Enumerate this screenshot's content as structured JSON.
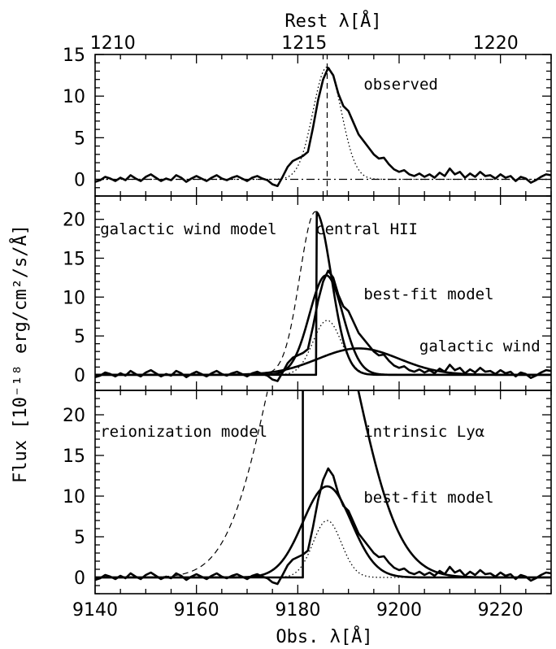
{
  "chart_data": {
    "type": "line",
    "x_axis": {
      "label": "Obs. λ[Å]",
      "range": [
        9140,
        9230
      ],
      "ticks": [
        9140,
        9160,
        9180,
        9200,
        9220
      ]
    },
    "top_axis": {
      "label": "Rest λ[Å]",
      "ticks": [
        1210,
        1215,
        1220
      ],
      "obs_per_rest": 7.5566,
      "obs_offset": 0
    },
    "y_axis_label": "Flux [10⁻¹⁸ erg/cm²/s/Å]",
    "panels": [
      {
        "id": "observed",
        "ylim": [
          -2,
          15
        ],
        "yticks": [
          0,
          5,
          10,
          15
        ],
        "annotations": [
          {
            "text": "observed",
            "x": 9193,
            "y": 10.8
          }
        ],
        "vline": {
          "x": 9185.8,
          "style": "dashed"
        },
        "hline": {
          "y": 0,
          "style": "dashdot"
        },
        "series": [
          {
            "role": "data",
            "style": "thick",
            "points": [
              [
                9140,
                -0.3
              ],
              [
                9141,
                -0.1
              ],
              [
                9142,
                0.3
              ],
              [
                9143,
                0.1
              ],
              [
                9144,
                -0.2
              ],
              [
                9145,
                0.2
              ],
              [
                9146,
                -0.1
              ],
              [
                9147,
                0.5
              ],
              [
                9148,
                0.1
              ],
              [
                9149,
                -0.2
              ],
              [
                9150,
                0.3
              ],
              [
                9151,
                0.6
              ],
              [
                9152,
                0.2
              ],
              [
                9153,
                -0.2
              ],
              [
                9154,
                0.1
              ],
              [
                9155,
                -0.1
              ],
              [
                9156,
                0.5
              ],
              [
                9157,
                0.2
              ],
              [
                9158,
                -0.3
              ],
              [
                9159,
                0.1
              ],
              [
                9160,
                0.4
              ],
              [
                9161,
                0.1
              ],
              [
                9162,
                -0.2
              ],
              [
                9163,
                0.2
              ],
              [
                9164,
                0.5
              ],
              [
                9165,
                0.1
              ],
              [
                9166,
                -0.1
              ],
              [
                9167,
                0.2
              ],
              [
                9168,
                0.4
              ],
              [
                9169,
                0.1
              ],
              [
                9170,
                -0.2
              ],
              [
                9171,
                0.2
              ],
              [
                9172,
                0.4
              ],
              [
                9173,
                0.1
              ],
              [
                9174,
                -0.1
              ],
              [
                9175,
                -0.6
              ],
              [
                9176,
                -0.8
              ],
              [
                9177,
                0.3
              ],
              [
                9178,
                1.5
              ],
              [
                9179,
                2.2
              ],
              [
                9180,
                2.5
              ],
              [
                9181,
                2.8
              ],
              [
                9182,
                3.3
              ],
              [
                9183,
                6.2
              ],
              [
                9184,
                9.5
              ],
              [
                9185,
                12.0
              ],
              [
                9186,
                13.4
              ],
              [
                9187,
                12.5
              ],
              [
                9188,
                10.3
              ],
              [
                9189,
                8.8
              ],
              [
                9190,
                8.2
              ],
              [
                9191,
                6.8
              ],
              [
                9192,
                5.4
              ],
              [
                9193,
                4.6
              ],
              [
                9194,
                3.8
              ],
              [
                9195,
                3.0
              ],
              [
                9196,
                2.5
              ],
              [
                9197,
                2.6
              ],
              [
                9198,
                1.8
              ],
              [
                9199,
                1.2
              ],
              [
                9200,
                0.9
              ],
              [
                9201,
                1.1
              ],
              [
                9202,
                0.6
              ],
              [
                9203,
                0.4
              ],
              [
                9204,
                0.7
              ],
              [
                9205,
                0.3
              ],
              [
                9206,
                0.6
              ],
              [
                9207,
                0.2
              ],
              [
                9208,
                0.8
              ],
              [
                9209,
                0.4
              ],
              [
                9210,
                1.3
              ],
              [
                9211,
                0.6
              ],
              [
                9212,
                0.9
              ],
              [
                9213,
                0.2
              ],
              [
                9214,
                0.7
              ],
              [
                9215,
                0.3
              ],
              [
                9216,
                0.9
              ],
              [
                9217,
                0.4
              ],
              [
                9218,
                0.5
              ],
              [
                9219,
                0.1
              ],
              [
                9220,
                0.6
              ],
              [
                9221,
                0.2
              ],
              [
                9222,
                0.4
              ],
              [
                9223,
                -0.2
              ],
              [
                9224,
                0.3
              ],
              [
                9225,
                0.1
              ],
              [
                9226,
                -0.4
              ],
              [
                9227,
                -0.1
              ],
              [
                9228,
                0.3
              ],
              [
                9229,
                0.6
              ],
              [
                9230,
                0.5
              ]
            ]
          },
          {
            "role": "gaussian",
            "style": "dotted",
            "gauss": {
              "amp": 13.5,
              "mu": 9185.8,
              "sigma": 2.8
            }
          }
        ]
      },
      {
        "id": "wind",
        "ylim": [
          -2,
          23
        ],
        "yticks": [
          0,
          5,
          10,
          15,
          20
        ],
        "annotations": [
          {
            "text": "galactic wind model",
            "x": 9141,
            "y": 18.1
          },
          {
            "text": "central HII",
            "x": 9183.5,
            "y": 18.1
          },
          {
            "text": "best-fit model",
            "x": 9193,
            "y": 9.7
          },
          {
            "text": "galactic wind",
            "x": 9204,
            "y": 3.0
          }
        ],
        "series": [
          {
            "role": "data",
            "style": "thick",
            "ref": "observed"
          },
          {
            "role": "central-HII-intrinsic",
            "style": "dashed",
            "gauss": {
              "amp": 21.0,
              "mu": 9183.5,
              "sigma": 3.1
            }
          },
          {
            "role": "central-HII",
            "style": "thick",
            "gauss": {
              "amp": 21.0,
              "mu": 9183.5,
              "sigma": 3.1,
              "cut_below": 9183.6
            }
          },
          {
            "role": "galactic-wind",
            "style": "thick",
            "gauss": {
              "amp": 3.4,
              "mu": 9192.0,
              "sigma": 8.0
            }
          },
          {
            "role": "best-fit",
            "style": "thick",
            "gauss": {
              "amp": 12.8,
              "mu": 9185.6,
              "sigma": 3.3
            }
          },
          {
            "role": "gaussian",
            "style": "dotted",
            "gauss": {
              "amp": 7.0,
              "mu": 9185.8,
              "sigma": 2.8
            }
          }
        ]
      },
      {
        "id": "reion",
        "ylim": [
          -2,
          23
        ],
        "yticks": [
          0,
          5,
          10,
          15,
          20
        ],
        "annotations": [
          {
            "text": "reionization model",
            "x": 9141,
            "y": 17.3
          },
          {
            "text": "intrinsic Lyα",
            "x": 9193,
            "y": 17.3
          },
          {
            "text": "best-fit model",
            "x": 9193,
            "y": 9.2
          }
        ],
        "series": [
          {
            "role": "data",
            "style": "thick",
            "ref": "observed"
          },
          {
            "role": "intrinsic-lya-wing",
            "style": "dashed",
            "gauss": {
              "amp": 40.0,
              "mu": 9183.0,
              "sigma": 8.5,
              "max_x": 9174
            }
          },
          {
            "role": "intrinsic-lya",
            "style": "thick",
            "gauss": {
              "amp": 40.0,
              "mu": 9183.0,
              "sigma": 8.5,
              "min_x": 9181,
              "step_at": 9181,
              "step_base": 0,
              "step_top": 23
            }
          },
          {
            "role": "best-fit",
            "style": "thick",
            "gauss": {
              "amp": 11.2,
              "mu": 9185.8,
              "sigma": 4.8
            }
          },
          {
            "role": "gaussian",
            "style": "dotted",
            "gauss": {
              "amp": 7.0,
              "mu": 9185.8,
              "sigma": 2.8
            }
          }
        ]
      }
    ]
  }
}
